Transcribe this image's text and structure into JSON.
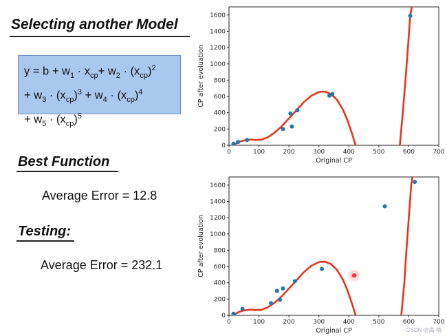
{
  "slide": {
    "title": "Selecting another Model",
    "formula_lines": [
      [
        "y = b + w",
        "1",
        " · x",
        "cp",
        "+ w",
        "2",
        " · (x",
        "cp",
        ")",
        "2"
      ],
      [
        "+ w",
        "3",
        " · (x",
        "cp",
        ")",
        "3",
        " + w",
        "4",
        " · (x",
        "cp",
        ")",
        "4"
      ],
      [
        "+ w",
        "5",
        " · (x",
        "cp",
        ")",
        "5"
      ]
    ],
    "best_function_label": "Best Function",
    "best_error_text": "Average Error = 12.8",
    "testing_label": "Testing:",
    "testing_error_text": "Average Error = 232.1",
    "watermark": "CSDN @高 萌"
  },
  "colors": {
    "curve": "#e8341c",
    "points": "#1f77b4",
    "highlight": "#ff3b3b",
    "formula_bg": "#a9c8ee"
  },
  "chart_data": [
    {
      "type": "scatter",
      "title": "",
      "xlabel": "Original CP",
      "ylabel": "CP after evoluation",
      "xlim": [
        0,
        700
      ],
      "ylim": [
        0,
        1700
      ],
      "xticks": [
        0,
        100,
        200,
        300,
        400,
        500,
        600,
        700
      ],
      "yticks": [
        0,
        200,
        400,
        600,
        800,
        1000,
        1200,
        1400,
        1600
      ],
      "points": [
        [
          15,
          20
        ],
        [
          30,
          40
        ],
        [
          60,
          65
        ],
        [
          180,
          200
        ],
        [
          210,
          230
        ],
        [
          205,
          390
        ],
        [
          228,
          430
        ],
        [
          335,
          610
        ],
        [
          345,
          630
        ],
        [
          605,
          1590
        ]
      ],
      "curve": [
        [
          10,
          0
        ],
        [
          20,
          15
        ],
        [
          35,
          45
        ],
        [
          50,
          60
        ],
        [
          70,
          70
        ],
        [
          90,
          65
        ],
        [
          110,
          70
        ],
        [
          130,
          100
        ],
        [
          150,
          150
        ],
        [
          175,
          230
        ],
        [
          200,
          330
        ],
        [
          225,
          430
        ],
        [
          250,
          530
        ],
        [
          275,
          610
        ],
        [
          300,
          655
        ],
        [
          320,
          660
        ],
        [
          340,
          630
        ],
        [
          360,
          560
        ],
        [
          380,
          440
        ],
        [
          395,
          310
        ],
        [
          410,
          150
        ],
        [
          420,
          30
        ],
        [
          423,
          0
        ],
        null,
        [
          570,
          0
        ],
        [
          580,
          400
        ],
        [
          590,
          850
        ],
        [
          598,
          1250
        ],
        [
          605,
          1600
        ],
        [
          610,
          1700
        ]
      ]
    },
    {
      "type": "scatter",
      "title": "",
      "xlabel": "Original CP",
      "ylabel": "CP after evoluation",
      "xlim": [
        0,
        700
      ],
      "ylim": [
        0,
        1700
      ],
      "xticks": [
        0,
        100,
        200,
        300,
        400,
        500,
        600,
        700
      ],
      "yticks": [
        0,
        200,
        400,
        600,
        800,
        1000,
        1200,
        1400,
        1600
      ],
      "points": [
        [
          15,
          20
        ],
        [
          45,
          80
        ],
        [
          140,
          150
        ],
        [
          160,
          300
        ],
        [
          170,
          190
        ],
        [
          180,
          330
        ],
        [
          220,
          420
        ],
        [
          310,
          570
        ],
        [
          520,
          1340
        ],
        [
          620,
          1640
        ]
      ],
      "highlight_point": [
        418,
        490
      ],
      "curve": [
        [
          10,
          0
        ],
        [
          20,
          15
        ],
        [
          35,
          45
        ],
        [
          50,
          60
        ],
        [
          70,
          70
        ],
        [
          90,
          65
        ],
        [
          110,
          70
        ],
        [
          130,
          100
        ],
        [
          150,
          150
        ],
        [
          175,
          230
        ],
        [
          200,
          330
        ],
        [
          225,
          430
        ],
        [
          250,
          530
        ],
        [
          275,
          610
        ],
        [
          300,
          655
        ],
        [
          320,
          660
        ],
        [
          340,
          630
        ],
        [
          360,
          560
        ],
        [
          380,
          440
        ],
        [
          395,
          310
        ],
        [
          410,
          150
        ],
        [
          420,
          30
        ],
        [
          423,
          0
        ],
        null,
        [
          575,
          0
        ],
        [
          585,
          400
        ],
        [
          593,
          850
        ],
        [
          601,
          1250
        ],
        [
          608,
          1600
        ],
        [
          612,
          1700
        ]
      ]
    }
  ]
}
